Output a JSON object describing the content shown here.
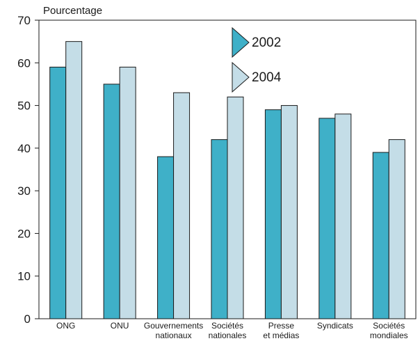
{
  "chart_data": {
    "type": "bar",
    "ylabel": "Pourcentage",
    "ylim": [
      0,
      70
    ],
    "yticks": [
      0,
      10,
      20,
      30,
      40,
      50,
      60,
      70
    ],
    "categories": [
      [
        "ONG"
      ],
      [
        "ONU"
      ],
      [
        "Gouvernements",
        "nationaux"
      ],
      [
        "Sociétés",
        "nationales"
      ],
      [
        "Presse",
        "et médias"
      ],
      [
        "Syndicats"
      ],
      [
        "Sociétés",
        "mondiales"
      ]
    ],
    "series": [
      {
        "name": "2002",
        "color": "#3fb0c8",
        "values": [
          59,
          55,
          38,
          42,
          49,
          47,
          39
        ]
      },
      {
        "name": "2004",
        "color": "#c4dde7",
        "values": [
          65,
          59,
          53,
          52,
          50,
          48,
          42
        ]
      }
    ],
    "legend_position": "top-center",
    "grid": false
  }
}
